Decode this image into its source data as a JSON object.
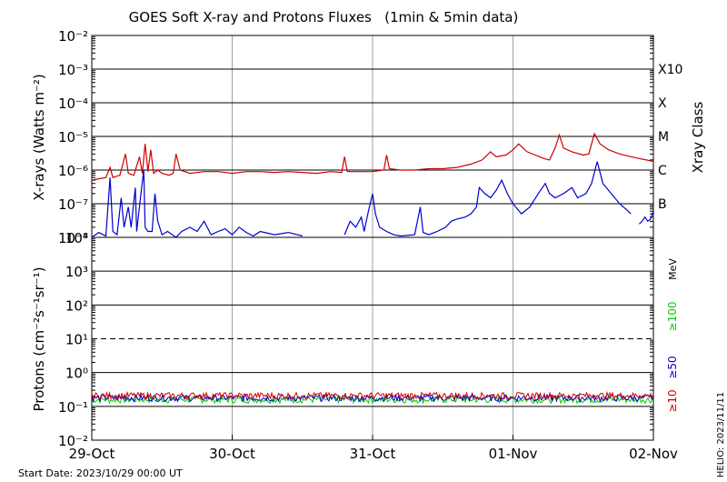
{
  "title": "GOES Soft X-ray and Protons Fluxes   (1min & 5min data)",
  "footer_left": "Start Date: 2023/10/29 00:00 UT",
  "footer_right": "HELIO: 2023/11/11",
  "colors": {
    "xray_long": "#cc0000",
    "xray_short": "#0000cc",
    "p10": "#cc0000",
    "p50": "#0000cc",
    "p100": "#00cc00",
    "grid": "#000000",
    "day_line": "#a0a0a0"
  },
  "chart_data": [
    {
      "type": "line",
      "panel": "xray",
      "ylabel": "X-rays (Watts m⁻²)",
      "y_scale": "log",
      "ylim": [
        1e-08,
        0.01
      ],
      "y_ticks": [
        "10⁻⁸",
        "10⁻⁷",
        "10⁻⁶",
        "10⁻⁵",
        "10⁻⁴",
        "10⁻³",
        "10⁻²"
      ],
      "x_ticks": [
        "29-Oct",
        "30-Oct",
        "31-Oct",
        "01-Nov",
        "02-Nov"
      ],
      "xlim_days": [
        0,
        4
      ],
      "class_axis_label": "Xray Class",
      "class_labels": [
        "B",
        "C",
        "M",
        "X",
        "X10"
      ],
      "series": [
        {
          "color": "#cc0000",
          "points": [
            [
              0.0,
              5e-07
            ],
            [
              0.05,
              5.5e-07
            ],
            [
              0.1,
              6e-07
            ],
            [
              0.13,
              1.2e-06
            ],
            [
              0.15,
              6e-07
            ],
            [
              0.2,
              7e-07
            ],
            [
              0.24,
              3e-06
            ],
            [
              0.26,
              8e-07
            ],
            [
              0.3,
              7e-07
            ],
            [
              0.34,
              2.5e-06
            ],
            [
              0.36,
              8e-07
            ],
            [
              0.38,
              6e-06
            ],
            [
              0.4,
              9e-07
            ],
            [
              0.42,
              4e-06
            ],
            [
              0.44,
              8e-07
            ],
            [
              0.47,
              1e-06
            ],
            [
              0.5,
              8e-07
            ],
            [
              0.55,
              7e-07
            ],
            [
              0.58,
              8e-07
            ],
            [
              0.6,
              3e-06
            ],
            [
              0.63,
              1e-06
            ],
            [
              0.7,
              8e-07
            ],
            [
              0.8,
              9e-07
            ],
            [
              0.9,
              9e-07
            ],
            [
              1.0,
              8e-07
            ],
            [
              1.1,
              9e-07
            ],
            [
              1.2,
              9e-07
            ],
            [
              1.3,
              8.5e-07
            ],
            [
              1.4,
              9e-07
            ],
            [
              1.5,
              8.5e-07
            ],
            [
              1.6,
              8e-07
            ],
            [
              1.7,
              9e-07
            ],
            [
              1.78,
              8.5e-07
            ],
            [
              1.8,
              2.5e-06
            ],
            [
              1.82,
              9e-07
            ],
            [
              1.9,
              9e-07
            ],
            [
              2.0,
              9e-07
            ],
            [
              2.08,
              1e-06
            ],
            [
              2.1,
              2.8e-06
            ],
            [
              2.12,
              1.1e-06
            ],
            [
              2.2,
              1e-06
            ],
            [
              2.3,
              1e-06
            ],
            [
              2.4,
              1.1e-06
            ],
            [
              2.5,
              1.1e-06
            ],
            [
              2.6,
              1.2e-06
            ],
            [
              2.7,
              1.5e-06
            ],
            [
              2.78,
              2e-06
            ],
            [
              2.84,
              3.5e-06
            ],
            [
              2.88,
              2.5e-06
            ],
            [
              2.95,
              2.8e-06
            ],
            [
              3.0,
              4e-06
            ],
            [
              3.04,
              6e-06
            ],
            [
              3.1,
              3.5e-06
            ],
            [
              3.16,
              2.8e-06
            ],
            [
              3.22,
              2.2e-06
            ],
            [
              3.26,
              2e-06
            ],
            [
              3.3,
              4.5e-06
            ],
            [
              3.33,
              1.1e-05
            ],
            [
              3.36,
              4.5e-06
            ],
            [
              3.42,
              3.5e-06
            ],
            [
              3.5,
              2.8e-06
            ],
            [
              3.54,
              3e-06
            ],
            [
              3.58,
              1.2e-05
            ],
            [
              3.62,
              6e-06
            ],
            [
              3.68,
              4e-06
            ],
            [
              3.76,
              3e-06
            ],
            [
              3.84,
              2.5e-06
            ],
            [
              3.9,
              2.2e-06
            ],
            [
              3.95,
              2e-06
            ],
            [
              4.0,
              1.8e-06
            ]
          ]
        },
        {
          "color": "#0000cc",
          "segments": [
            [
              [
                0.0,
                1e-08
              ],
              [
                0.05,
                1.4e-08
              ],
              [
                0.1,
                1.1e-08
              ],
              [
                0.13,
                6e-07
              ],
              [
                0.15,
                1.5e-08
              ],
              [
                0.18,
                1.2e-08
              ],
              [
                0.21,
                1.5e-07
              ],
              [
                0.23,
                2e-08
              ],
              [
                0.26,
                8e-08
              ],
              [
                0.28,
                2e-08
              ],
              [
                0.31,
                3e-07
              ],
              [
                0.32,
                1.5e-08
              ],
              [
                0.35,
                2e-07
              ],
              [
                0.37,
                1e-06
              ],
              [
                0.38,
                2e-08
              ],
              [
                0.4,
                1.5e-08
              ],
              [
                0.43,
                1.5e-08
              ],
              [
                0.45,
                2e-07
              ],
              [
                0.47,
                3e-08
              ],
              [
                0.5,
                1.2e-08
              ],
              [
                0.54,
                1.5e-08
              ],
              [
                0.6,
                1e-08
              ],
              [
                0.64,
                1.5e-08
              ],
              [
                0.7,
                2e-08
              ],
              [
                0.75,
                1.5e-08
              ],
              [
                0.8,
                3e-08
              ],
              [
                0.85,
                1.2e-08
              ],
              [
                0.9,
                1.5e-08
              ],
              [
                0.95,
                1.8e-08
              ],
              [
                1.0,
                1.2e-08
              ],
              [
                1.05,
                2e-08
              ],
              [
                1.1,
                1.4e-08
              ],
              [
                1.15,
                1.1e-08
              ],
              [
                1.2,
                1.5e-08
              ],
              [
                1.3,
                1.2e-08
              ],
              [
                1.4,
                1.4e-08
              ],
              [
                1.5,
                1.1e-08
              ]
            ],
            [
              [
                1.8,
                1.2e-08
              ],
              [
                1.84,
                3e-08
              ],
              [
                1.88,
                2e-08
              ],
              [
                1.92,
                4e-08
              ],
              [
                1.94,
                1.5e-08
              ],
              [
                1.97,
                6e-08
              ],
              [
                2.0,
                2e-07
              ],
              [
                2.02,
                5e-08
              ],
              [
                2.05,
                2e-08
              ],
              [
                2.1,
                1.5e-08
              ],
              [
                2.15,
                1.2e-08
              ],
              [
                2.2,
                1.1e-08
              ],
              [
                2.3,
                1.2e-08
              ],
              [
                2.34,
                8e-08
              ],
              [
                2.36,
                1.4e-08
              ],
              [
                2.4,
                1.2e-08
              ],
              [
                2.46,
                1.5e-08
              ],
              [
                2.52,
                2e-08
              ],
              [
                2.56,
                3e-08
              ],
              [
                2.6,
                3.5e-08
              ],
              [
                2.66,
                4e-08
              ],
              [
                2.7,
                5e-08
              ],
              [
                2.74,
                8e-08
              ],
              [
                2.76,
                3e-07
              ],
              [
                2.8,
                2e-07
              ],
              [
                2.84,
                1.5e-07
              ],
              [
                2.88,
                2.5e-07
              ],
              [
                2.92,
                5e-07
              ],
              [
                2.96,
                2e-07
              ],
              [
                3.0,
                1e-07
              ],
              [
                3.06,
                5e-08
              ],
              [
                3.12,
                8e-08
              ],
              [
                3.18,
                2e-07
              ],
              [
                3.23,
                4e-07
              ],
              [
                3.26,
                2e-07
              ],
              [
                3.3,
                1.5e-07
              ],
              [
                3.36,
                2e-07
              ],
              [
                3.42,
                3e-07
              ],
              [
                3.46,
                1.5e-07
              ],
              [
                3.52,
                2e-07
              ],
              [
                3.56,
                4e-07
              ],
              [
                3.6,
                1.8e-06
              ],
              [
                3.64,
                4e-07
              ],
              [
                3.7,
                2e-07
              ],
              [
                3.76,
                1e-07
              ],
              [
                3.82,
                6e-08
              ],
              [
                3.84,
                5e-08
              ]
            ],
            [
              [
                3.9,
                2.5e-08
              ],
              [
                3.92,
                3e-08
              ],
              [
                3.94,
                4e-08
              ],
              [
                3.96,
                3e-08
              ],
              [
                3.98,
                3.5e-08
              ],
              [
                4.0,
                6e-08
              ]
            ]
          ]
        }
      ]
    },
    {
      "type": "line",
      "panel": "protons",
      "ylabel": "Protons (cm⁻²s⁻¹sr⁻¹)",
      "y_scale": "log",
      "ylim": [
        0.01,
        10000
      ],
      "y_ticks": [
        "10⁻²",
        "10⁻¹",
        "10⁰",
        "10¹",
        "10²",
        "10³",
        "10⁴"
      ],
      "x_ticks": [
        "29-Oct",
        "30-Oct",
        "31-Oct",
        "01-Nov",
        "02-Nov"
      ],
      "xlim_days": [
        0,
        4
      ],
      "threshold": 10,
      "energy_unit": "MeV",
      "legend": [
        "≥10",
        "≥50",
        "≥100"
      ],
      "series": [
        {
          "name": "≥10",
          "color": "#cc0000",
          "level": 0.21
        },
        {
          "name": "≥50",
          "color": "#0000cc",
          "level": 0.18
        },
        {
          "name": "≥100",
          "color": "#00cc00",
          "level": 0.16
        }
      ]
    }
  ]
}
